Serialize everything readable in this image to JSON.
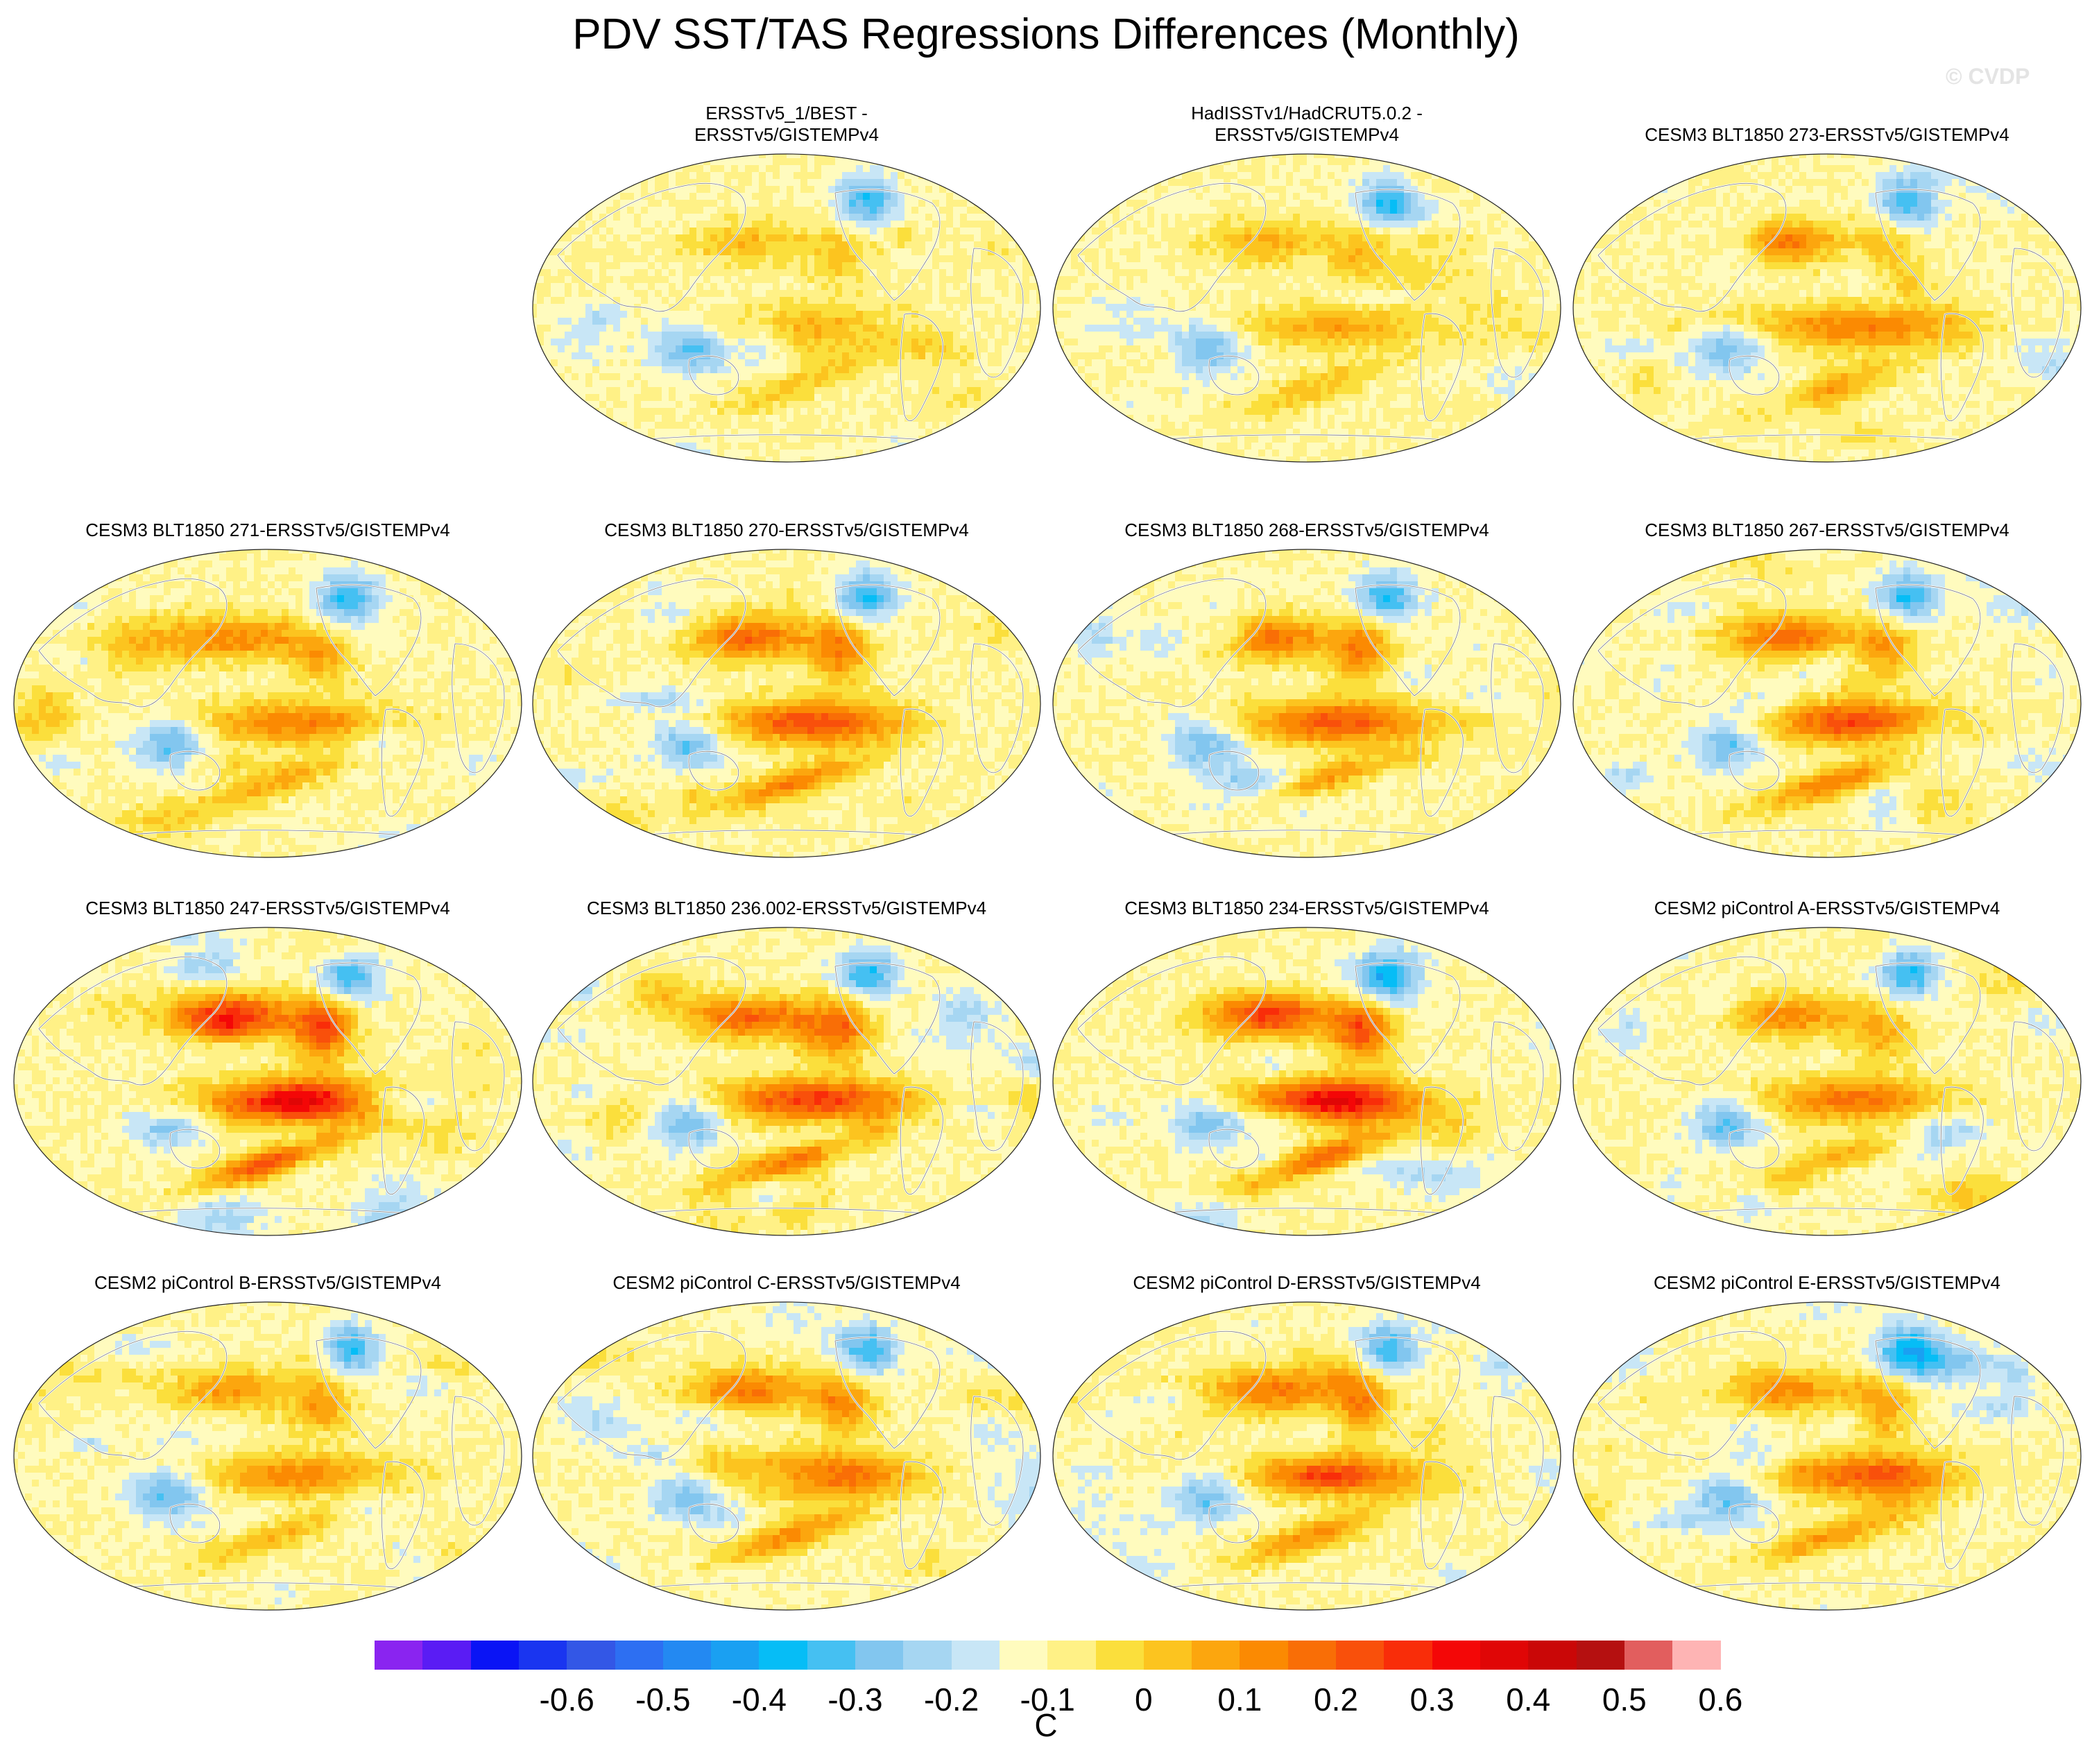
{
  "title": "PDV SST/TAS Regressions Differences (Monthly)",
  "watermark": "© CVDP",
  "panels": [
    {
      "title_line1": "ERSSTv5_1/BEST -",
      "title_line2": "ERSSTv5/GISTEMPv4",
      "intensity": 0.45,
      "seed": 11
    },
    {
      "title_line1": "HadISSTv1/HadCRUT5.0.2 -",
      "title_line2": "ERSSTv5/GISTEMPv4",
      "intensity": 0.5,
      "seed": 12
    },
    {
      "title_line1": "CESM3 BLT1850 273-ERSSTv5/GISTEMPv4",
      "title_line2": "",
      "intensity": 0.7,
      "seed": 13
    },
    {
      "title_line1": "CESM3 BLT1850 271-ERSSTv5/GISTEMPv4",
      "title_line2": "",
      "intensity": 0.7,
      "seed": 14
    },
    {
      "title_line1": "CESM3 BLT1850 270-ERSSTv5/GISTEMPv4",
      "title_line2": "",
      "intensity": 0.95,
      "seed": 15
    },
    {
      "title_line1": "CESM3 BLT1850 268-ERSSTv5/GISTEMPv4",
      "title_line2": "",
      "intensity": 0.9,
      "seed": 16
    },
    {
      "title_line1": "CESM3 BLT1850 267-ERSSTv5/GISTEMPv4",
      "title_line2": "",
      "intensity": 0.95,
      "seed": 17
    },
    {
      "title_line1": "CESM3 BLT1850 247-ERSSTv5/GISTEMPv4",
      "title_line2": "",
      "intensity": 1.3,
      "seed": 18
    },
    {
      "title_line1": "CESM3 BLT1850 236.002-ERSSTv5/GISTEMPv4",
      "title_line2": "",
      "intensity": 1.05,
      "seed": 19
    },
    {
      "title_line1": "CESM3 BLT1850 234-ERSSTv5/GISTEMPv4",
      "title_line2": "",
      "intensity": 1.25,
      "seed": 20
    },
    {
      "title_line1": "CESM2 piControl A-ERSSTv5/GISTEMPv4",
      "title_line2": "",
      "intensity": 0.75,
      "seed": 21
    },
    {
      "title_line1": "CESM2 piControl B-ERSSTv5/GISTEMPv4",
      "title_line2": "",
      "intensity": 0.65,
      "seed": 22
    },
    {
      "title_line1": "CESM2 piControl C-ERSSTv5/GISTEMPv4",
      "title_line2": "",
      "intensity": 0.85,
      "seed": 23
    },
    {
      "title_line1": "CESM2 piControl D-ERSSTv5/GISTEMPv4",
      "title_line2": "",
      "intensity": 0.85,
      "seed": 24
    },
    {
      "title_line1": "CESM2 piControl E-ERSSTv5/GISTEMPv4",
      "title_line2": "",
      "intensity": 0.75,
      "seed": 25
    }
  ],
  "colorbar": {
    "unit": "C",
    "tick_labels": [
      "-0.6",
      "-0.5",
      "-0.4",
      "-0.3",
      "-0.2",
      "-0.1",
      "0",
      "0.1",
      "0.2",
      "0.3",
      "0.4",
      "0.5",
      "0.6"
    ],
    "colors": [
      "#8a24f0",
      "#5a1cf4",
      "#0a14f5",
      "#1a35f0",
      "#3357e6",
      "#2d6ff2",
      "#2389f2",
      "#1aa0f2",
      "#06bdf6",
      "#45c0f2",
      "#82c6ef",
      "#a6d6f2",
      "#c8e6f6",
      "#fffbbe",
      "#fff186",
      "#fbdf3c",
      "#fcc41f",
      "#fca60e",
      "#fb8a02",
      "#f96e06",
      "#f9500b",
      "#f92d09",
      "#f40707",
      "#e00606",
      "#ca0707",
      "#b51010",
      "#e25e5e",
      "#feb4b4"
    ]
  }
}
